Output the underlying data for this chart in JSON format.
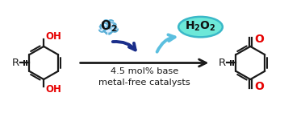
{
  "bg_color": "#ffffff",
  "bond_color": "#1a1a1a",
  "red_color": "#e60000",
  "o2_cloud_fill": "#ddeeff",
  "o2_cloud_edge": "#5bafd6",
  "h2o2_fill": "#6de8d8",
  "h2o2_edge": "#3ab8c8",
  "dark_blue": "#1a2e8a",
  "light_blue_arrow": "#5bbfdf",
  "reaction_text1": "4.5 mol% base",
  "reaction_text2": "metal-free catalysts",
  "figsize": [
    3.78,
    1.51
  ],
  "dpi": 100,
  "xlim": [
    0,
    10
  ],
  "ylim": [
    0,
    4
  ]
}
